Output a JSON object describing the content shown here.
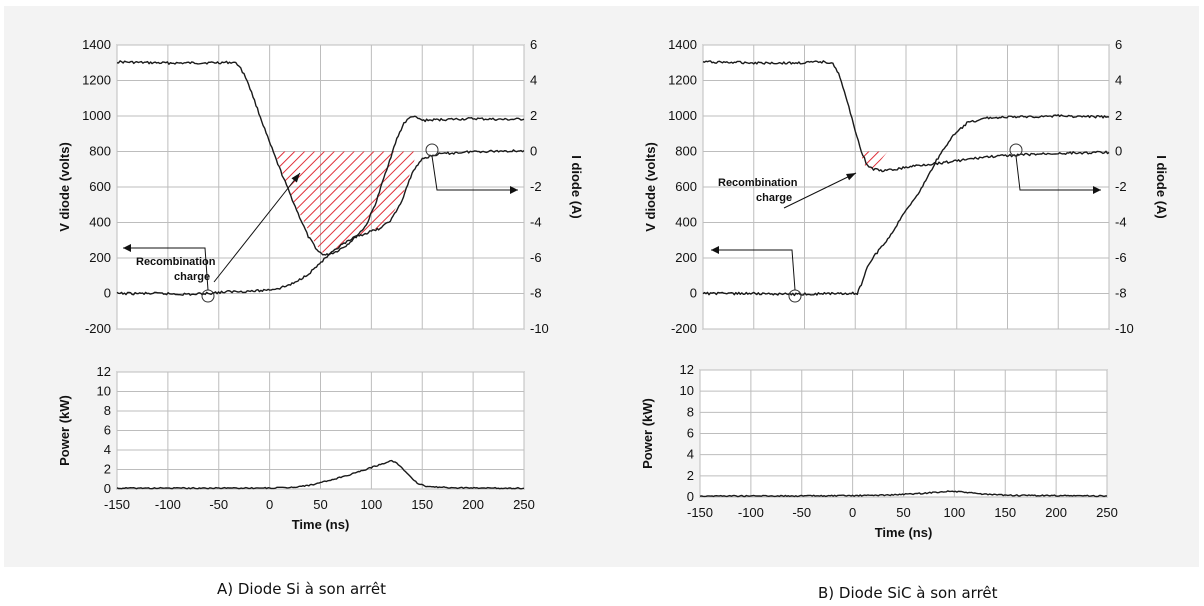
{
  "captions": {
    "left": "A) Diode Si à son arrêt",
    "right": "B) Diode SiC à son arrêt"
  },
  "colors": {
    "trace": "#1a1a1a",
    "grid": "#bdbdbd",
    "hatch": "#e0303a",
    "plot_bg": "#ffffff",
    "figure_bg": "#f3f3f3"
  },
  "chart_data": [
    {
      "id": "A-top",
      "type": "line",
      "ylabel": "V diode (volts)",
      "y2label": "I diode (A)",
      "xlim": [
        -150,
        250
      ],
      "xticks": [
        -150,
        -100,
        -50,
        0,
        50,
        100,
        150,
        200,
        250
      ],
      "ylim": [
        -200,
        1400
      ],
      "yticks": [
        -200,
        0,
        200,
        400,
        600,
        800,
        1000,
        1200,
        1400
      ],
      "y2lim": [
        -10,
        6
      ],
      "y2ticks": [
        -10,
        -8,
        -6,
        -4,
        -2,
        0,
        2,
        4,
        6
      ],
      "grid": true,
      "annotation": {
        "lines": [
          "Recombination",
          "charge"
        ]
      },
      "series": [
        {
          "axis": "left",
          "points": [
            [
              -150,
              1305
            ],
            [
              -120,
              1300
            ],
            [
              -90,
              1298
            ],
            [
              -60,
              1300
            ],
            [
              -35,
              1302
            ],
            [
              -30,
              1285
            ],
            [
              -22,
              1200
            ],
            [
              -12,
              1040
            ],
            [
              -2,
              880
            ],
            [
              8,
              730
            ],
            [
              18,
              590
            ],
            [
              28,
              450
            ],
            [
              38,
              320
            ],
            [
              48,
              235
            ],
            [
              55,
              215
            ],
            [
              65,
              235
            ],
            [
              75,
              270
            ],
            [
              85,
              320
            ],
            [
              95,
              385
            ],
            [
              105,
              520
            ],
            [
              115,
              700
            ],
            [
              125,
              870
            ],
            [
              132,
              960
            ],
            [
              140,
              1000
            ],
            [
              150,
              975
            ],
            [
              170,
              980
            ],
            [
              200,
              985
            ],
            [
              230,
              980
            ],
            [
              250,
              982
            ]
          ]
        },
        {
          "axis": "right",
          "points": [
            [
              -150,
              -8
            ],
            [
              -110,
              -8
            ],
            [
              -75,
              -8.05
            ],
            [
              -40,
              -7.9
            ],
            [
              -10,
              -7.85
            ],
            [
              10,
              -7.7
            ],
            [
              25,
              -7.4
            ],
            [
              40,
              -6.8
            ],
            [
              55,
              -6
            ],
            [
              70,
              -5.3
            ],
            [
              85,
              -4.8
            ],
            [
              100,
              -4.5
            ],
            [
              110,
              -4.3
            ],
            [
              120,
              -3.8
            ],
            [
              130,
              -2.8
            ],
            [
              140,
              -1.2
            ],
            [
              150,
              -0.4
            ],
            [
              165,
              -0.15
            ],
            [
              200,
              0
            ],
            [
              250,
              0.05
            ]
          ]
        }
      ],
      "hatched_region": [
        [
          5,
          0
        ],
        [
          145,
          0
        ],
        [
          140,
          -0.9
        ],
        [
          130,
          -2.6
        ],
        [
          120,
          -3.6
        ],
        [
          110,
          -4.2
        ],
        [
          100,
          -4.5
        ],
        [
          85,
          -4.8
        ],
        [
          70,
          -5.3
        ],
        [
          55,
          -5.9
        ],
        [
          45,
          -5.2
        ],
        [
          35,
          -4.1
        ],
        [
          25,
          -3
        ],
        [
          15,
          -1.6
        ]
      ]
    },
    {
      "id": "A-bottom",
      "type": "area",
      "xlabel": "Time (ns)",
      "ylabel": "Power (kW)",
      "xlim": [
        -150,
        250
      ],
      "xticks": [
        -150,
        -100,
        -50,
        0,
        50,
        100,
        150,
        200,
        250
      ],
      "ylim": [
        0,
        12
      ],
      "yticks": [
        0,
        2,
        4,
        6,
        8,
        10,
        12
      ],
      "grid": true,
      "series": [
        {
          "axis": "left",
          "points": [
            [
              -150,
              0.08
            ],
            [
              0,
              0.1
            ],
            [
              20,
              0.15
            ],
            [
              40,
              0.4
            ],
            [
              60,
              0.9
            ],
            [
              80,
              1.5
            ],
            [
              100,
              2.2
            ],
            [
              115,
              2.75
            ],
            [
              120,
              2.9
            ],
            [
              125,
              2.7
            ],
            [
              135,
              1.6
            ],
            [
              145,
              0.6
            ],
            [
              155,
              0.25
            ],
            [
              180,
              0.12
            ],
            [
              250,
              0.08
            ]
          ]
        }
      ]
    },
    {
      "id": "B-top",
      "type": "line",
      "ylabel": "V diode (volts)",
      "y2label": "I diode (A)",
      "xlim": [
        -150,
        250
      ],
      "xticks": [
        -150,
        -100,
        -50,
        0,
        50,
        100,
        150,
        200,
        250
      ],
      "ylim": [
        -200,
        1400
      ],
      "yticks": [
        -200,
        0,
        200,
        400,
        600,
        800,
        1000,
        1200,
        1400
      ],
      "y2lim": [
        -10,
        6
      ],
      "y2ticks": [
        -10,
        -8,
        -6,
        -4,
        -2,
        0,
        2,
        4,
        6
      ],
      "grid": true,
      "annotation": {
        "lines": [
          "Recombination",
          "charge"
        ]
      },
      "series": [
        {
          "axis": "left",
          "points": [
            [
              -150,
              1305
            ],
            [
              -100,
              1300
            ],
            [
              -60,
              1298
            ],
            [
              -30,
              1305
            ],
            [
              -22,
              1300
            ],
            [
              -15,
              1220
            ],
            [
              -8,
              1080
            ],
            [
              0,
              920
            ],
            [
              6,
              800
            ],
            [
              12,
              720
            ],
            [
              18,
              700
            ],
            [
              28,
              690
            ],
            [
              40,
              700
            ],
            [
              60,
              720
            ],
            [
              90,
              740
            ],
            [
              130,
              770
            ],
            [
              160,
              780
            ],
            [
              200,
              790
            ],
            [
              250,
              795
            ]
          ]
        },
        {
          "axis": "right",
          "points": [
            [
              -150,
              -8
            ],
            [
              -100,
              -8
            ],
            [
              -60,
              -8.05
            ],
            [
              -20,
              -8
            ],
            [
              2,
              -8
            ],
            [
              6,
              -7.5
            ],
            [
              12,
              -6.5
            ],
            [
              20,
              -5.8
            ],
            [
              35,
              -4.7
            ],
            [
              50,
              -3.3
            ],
            [
              65,
              -2.1
            ],
            [
              80,
              -0.5
            ],
            [
              95,
              0.8
            ],
            [
              110,
              1.6
            ],
            [
              130,
              1.9
            ],
            [
              160,
              1.95
            ],
            [
              200,
              2
            ],
            [
              250,
              1.95
            ]
          ]
        }
      ],
      "hatched_region": [
        [
          5,
          0
        ],
        [
          32,
          0
        ],
        [
          25,
          -0.5
        ],
        [
          18,
          -0.9
        ],
        [
          12,
          -1.1
        ],
        [
          8,
          -0.6
        ]
      ]
    },
    {
      "id": "B-bottom",
      "type": "area",
      "xlabel": "Time (ns)",
      "ylabel": "Power (kW)",
      "xlim": [
        -150,
        250
      ],
      "xticks": [
        -150,
        -100,
        -50,
        0,
        50,
        100,
        150,
        200,
        250
      ],
      "ylim": [
        0,
        12
      ],
      "yticks": [
        0,
        2,
        4,
        6,
        8,
        10,
        12
      ],
      "grid": true,
      "series": [
        {
          "axis": "left",
          "points": [
            [
              -150,
              0.1
            ],
            [
              -50,
              0.1
            ],
            [
              0,
              0.12
            ],
            [
              40,
              0.2
            ],
            [
              70,
              0.35
            ],
            [
              95,
              0.55
            ],
            [
              110,
              0.45
            ],
            [
              130,
              0.25
            ],
            [
              160,
              0.15
            ],
            [
              250,
              0.1
            ]
          ]
        }
      ]
    }
  ]
}
